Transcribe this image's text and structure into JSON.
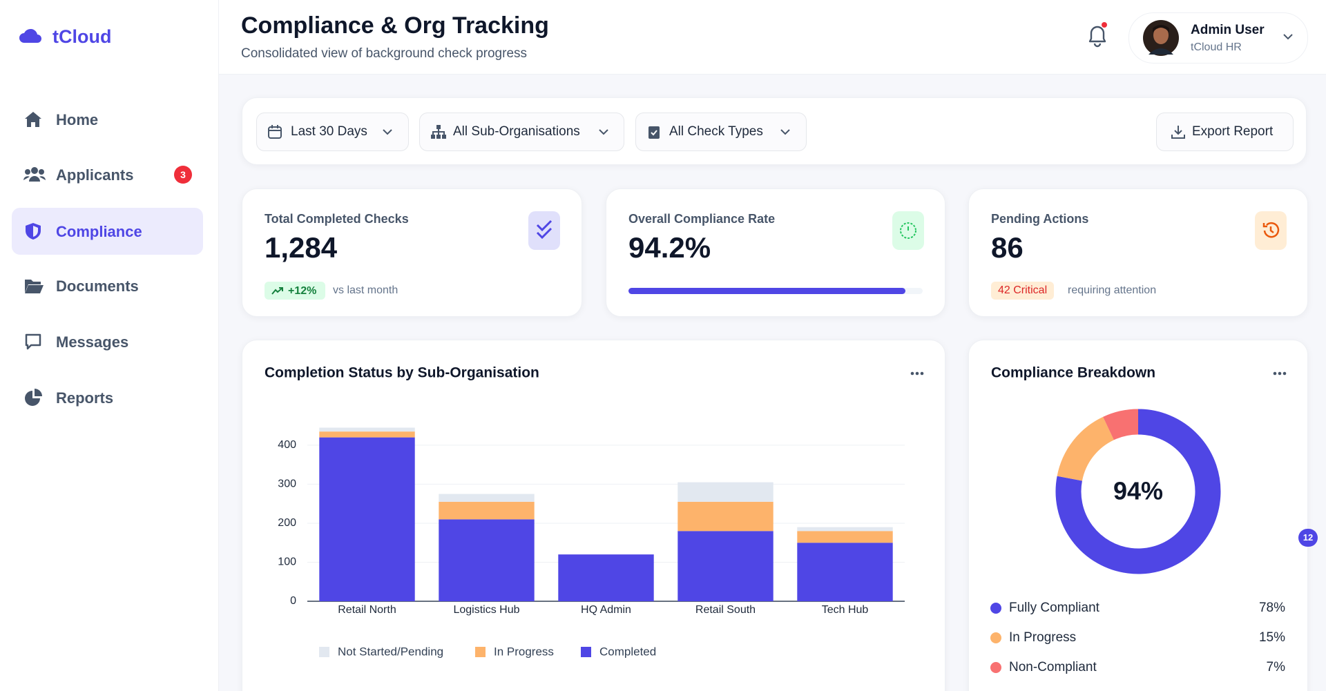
{
  "sidebar": {
    "brand": "tCloud",
    "nav": [
      {
        "label": "Home"
      },
      {
        "label": "Applicants",
        "badge": "3"
      },
      {
        "label": "Compliance"
      },
      {
        "label": "Documents"
      },
      {
        "label": "Messages"
      },
      {
        "label": "Reports"
      }
    ]
  },
  "header": {
    "title": "Compliance & Org Tracking",
    "subtitle": "Consolidated view of background check progress",
    "user": {
      "name": "Admin User",
      "org": "tCloud HR"
    }
  },
  "filters": [
    "Last 30 Days",
    "All Sub-Organisations",
    "All Check Types"
  ],
  "export_button": "Export Report",
  "kpis": [
    {
      "label": "Total Completed Checks",
      "value": "1,284",
      "change": "+12%",
      "note": "vs last month"
    },
    {
      "label": "Overall Compliance Rate",
      "value": "94.2%"
    },
    {
      "label": "Pending Actions",
      "value": "86",
      "tag": "42 Critical",
      "note": "requiring attention"
    }
  ],
  "chart_data": [
    {
      "type": "bar",
      "stacked": true,
      "title": "Completion Status by Sub-Organisation",
      "categories": [
        "Retail North",
        "Logistics Hub",
        "HQ Admin",
        "Retail South",
        "Tech Hub"
      ],
      "series": [
        {
          "name": "Not Started/Pending",
          "color": "#e2e8f0",
          "values": [
            10,
            20,
            0,
            50,
            10
          ]
        },
        {
          "name": "In Progress",
          "color": "#fdb36b",
          "values": [
            15,
            45,
            0,
            75,
            30
          ]
        },
        {
          "name": "Completed",
          "color": "#4f46e5",
          "values": [
            420,
            210,
            120,
            180,
            150
          ]
        }
      ],
      "ylim": [
        0,
        460
      ],
      "yticks": [
        0,
        100,
        200,
        300,
        400
      ],
      "grid": true,
      "legend": "bottom"
    },
    {
      "type": "donut",
      "title": "Compliance Breakdown",
      "center_label": "94%",
      "categories": [
        "Fully Compliant",
        "In Progress",
        "Non-Compliant"
      ],
      "values": [
        78,
        15,
        7
      ],
      "value_labels": [
        "78%",
        "15%",
        "7%"
      ],
      "colors": [
        "#4f46e5",
        "#fdb36b",
        "#f87171"
      ]
    }
  ],
  "floating_badge": "12"
}
